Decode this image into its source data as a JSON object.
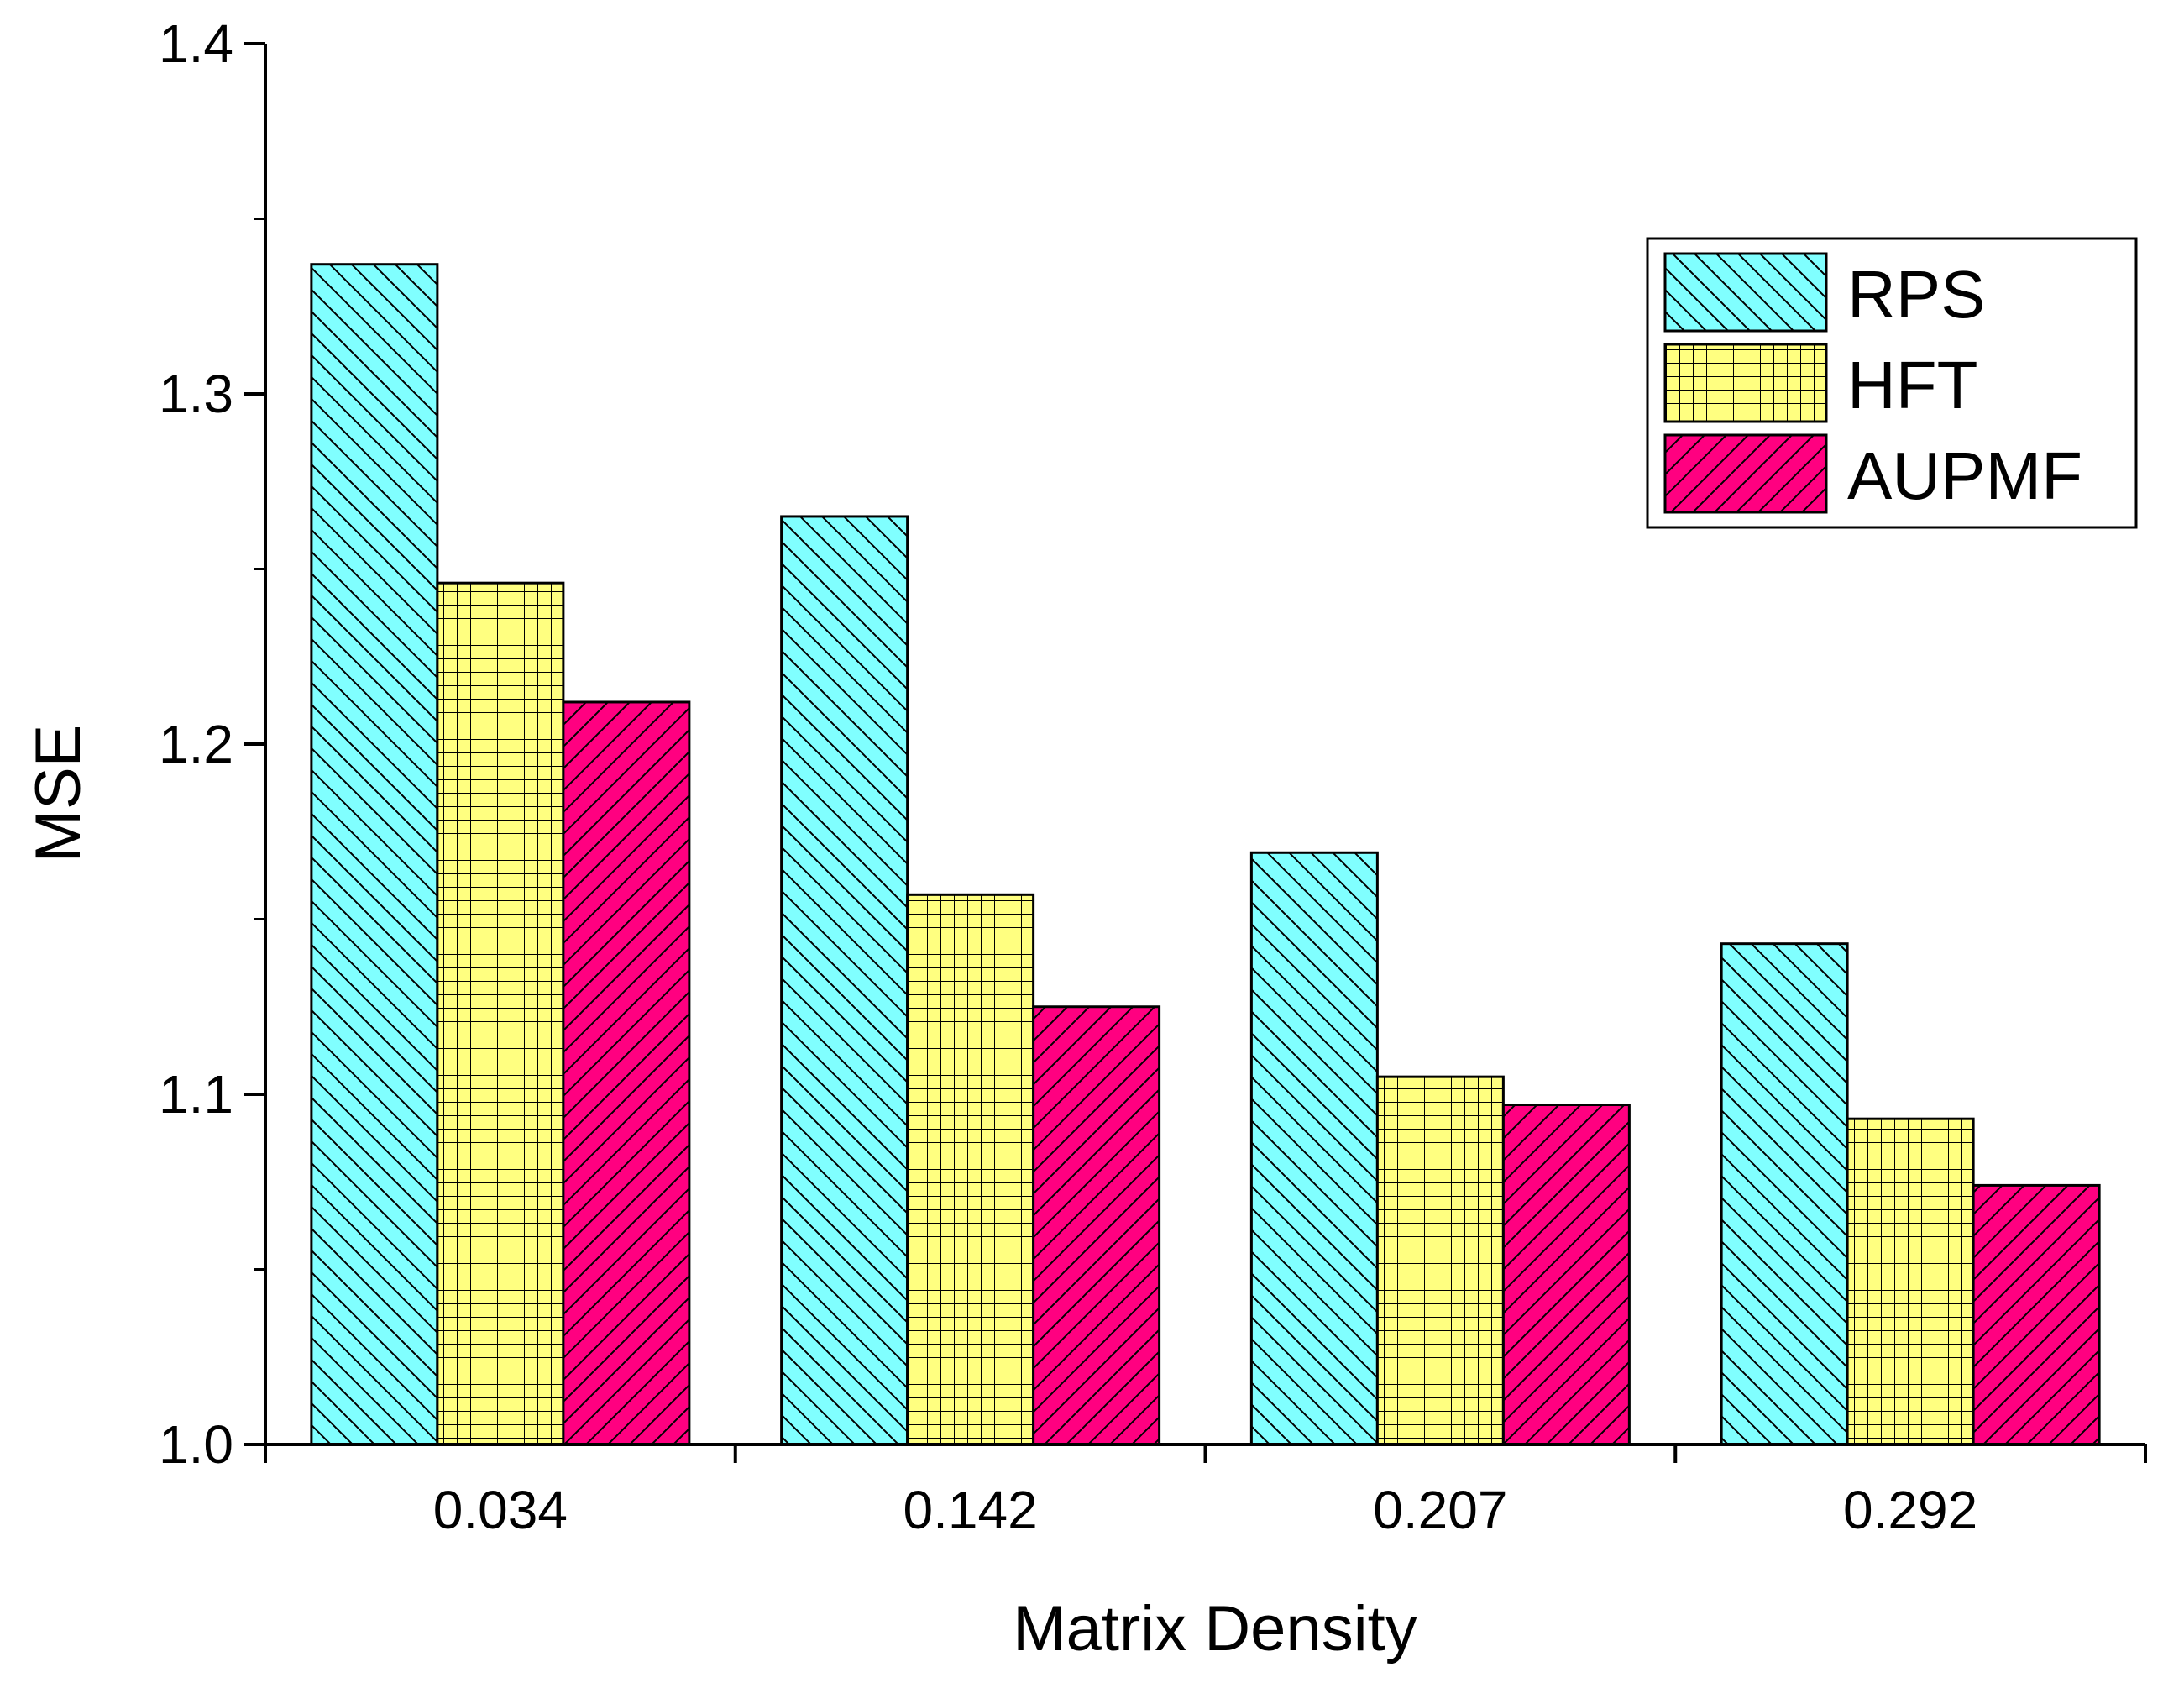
{
  "chart_data": {
    "type": "bar",
    "title": "",
    "xlabel": "Matrix Density",
    "ylabel": "MSE",
    "categories": [
      "0.034",
      "0.142",
      "0.207",
      "0.292"
    ],
    "ylim": [
      1.0,
      1.4
    ],
    "yticks": [
      "1.0",
      "1.1",
      "1.2",
      "1.3",
      "1.4"
    ],
    "grid": false,
    "legend_position": "top-right",
    "series": [
      {
        "name": "RPS",
        "values": [
          1.337,
          1.265,
          1.169,
          1.143
        ],
        "color": "#80FFFF",
        "pattern": "back-diagonal"
      },
      {
        "name": "HFT",
        "values": [
          1.246,
          1.157,
          1.105,
          1.093
        ],
        "color": "#FFFF80",
        "pattern": "grid"
      },
      {
        "name": "AUPMF",
        "values": [
          1.212,
          1.125,
          1.097,
          1.074
        ],
        "color": "#FF0080",
        "pattern": "forward-diagonal"
      }
    ]
  }
}
